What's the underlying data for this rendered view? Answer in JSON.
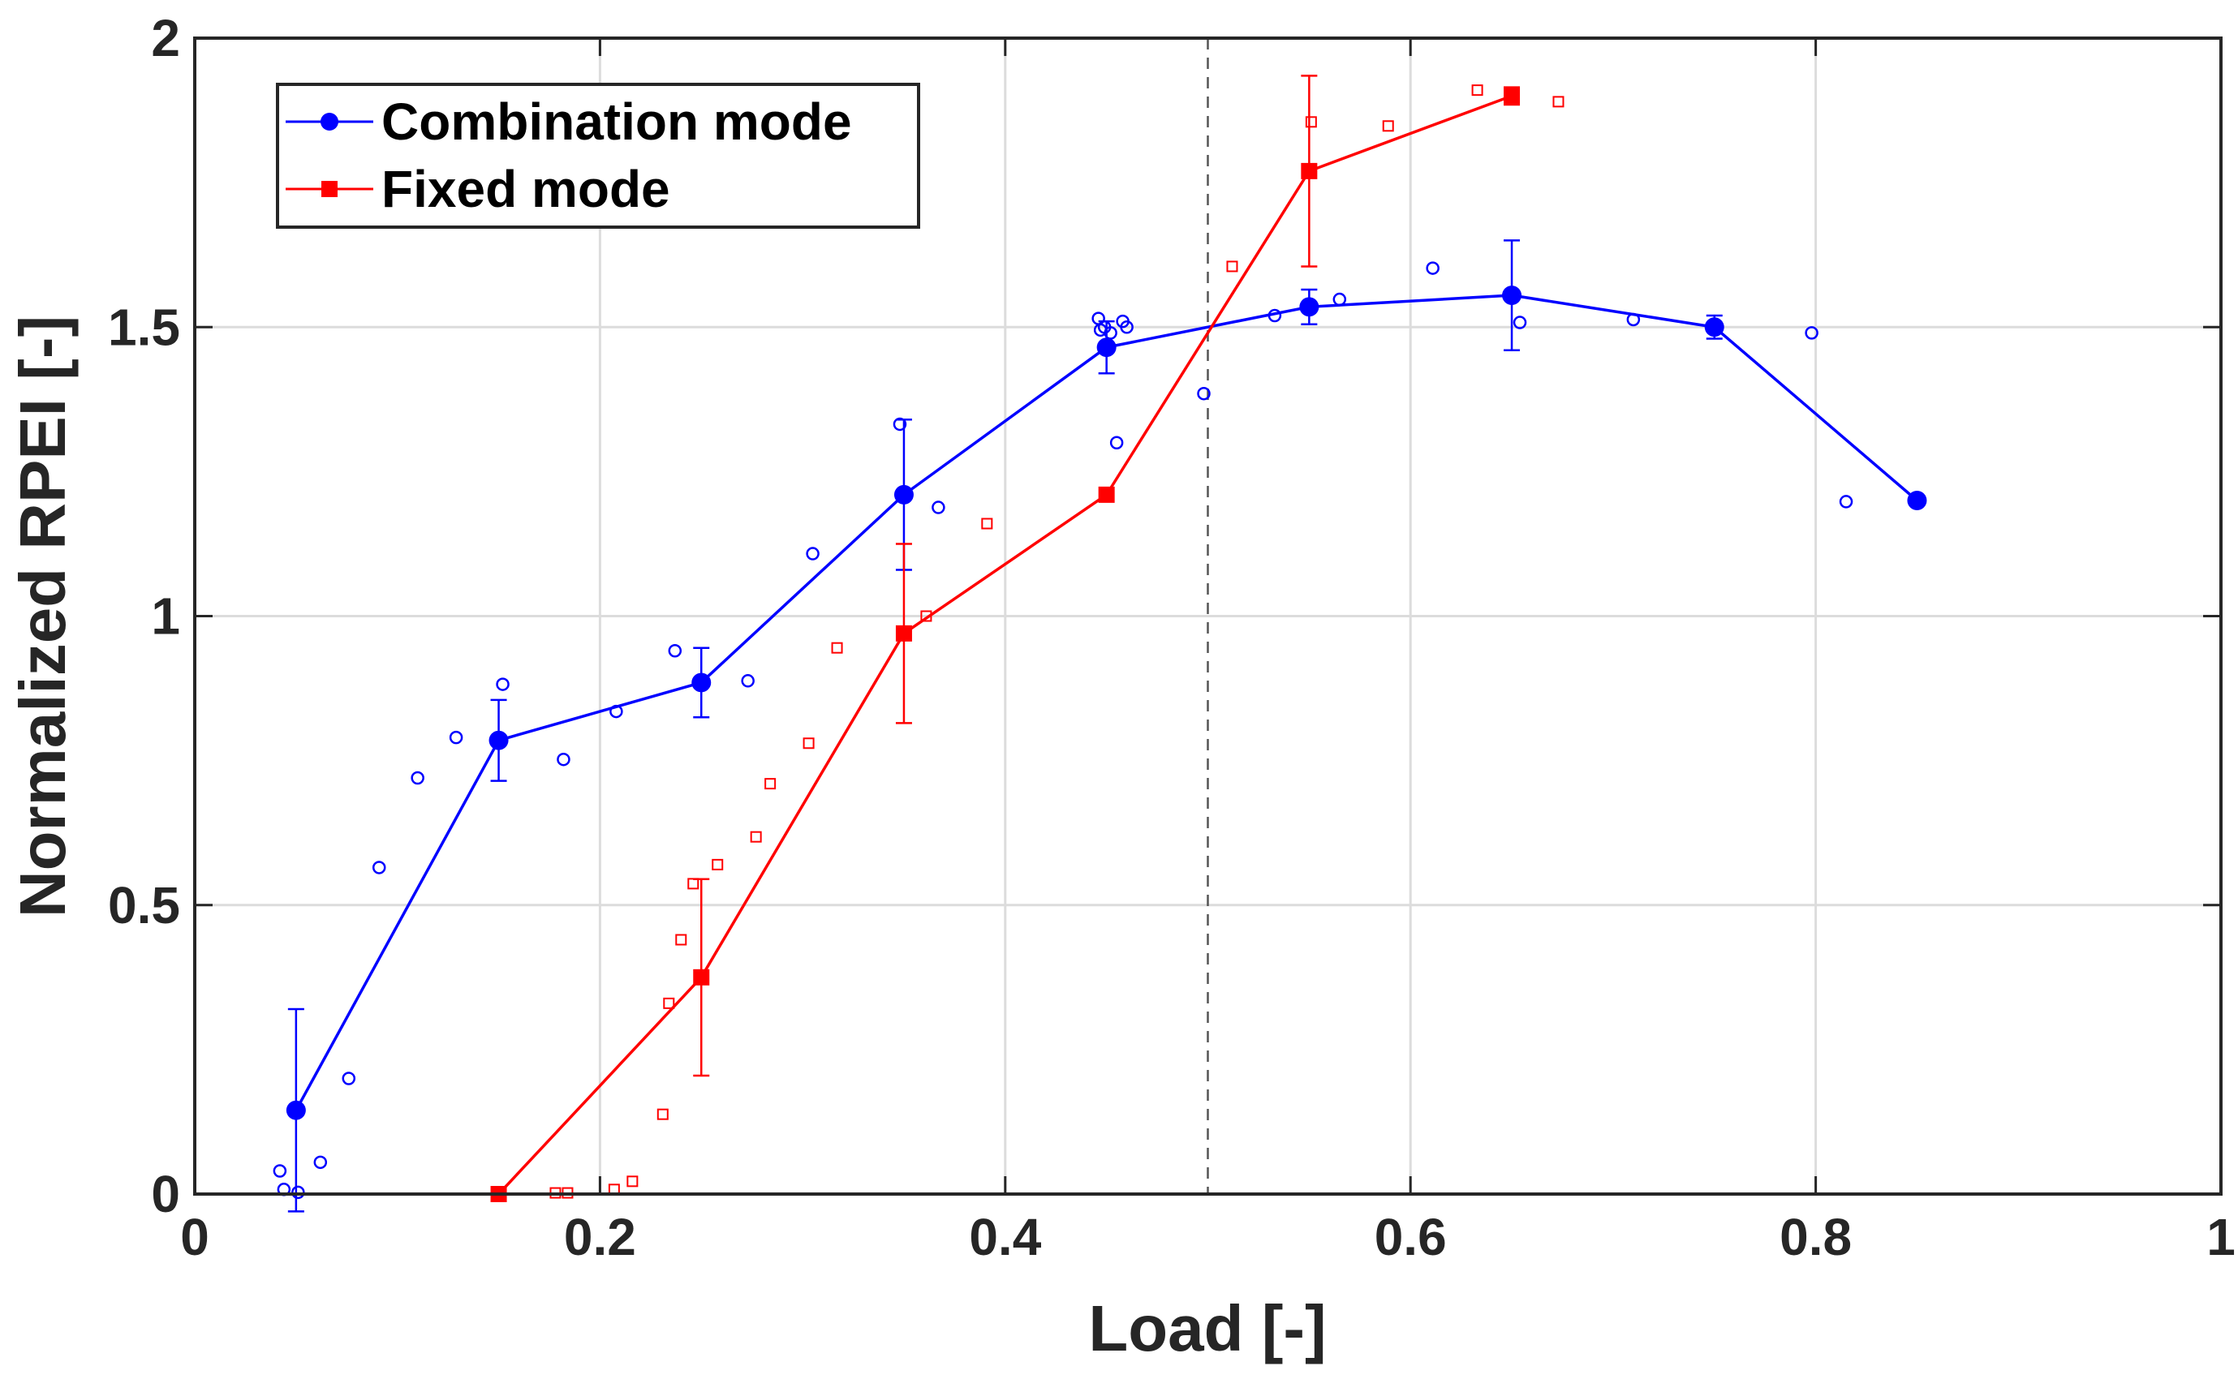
{
  "chart_data": {
    "type": "line",
    "title": "",
    "xlabel": "Load [-]",
    "ylabel": "Normalized RPEI [-]",
    "xlim": [
      0,
      1
    ],
    "ylim": [
      0,
      2
    ],
    "xticks": [
      "0",
      "0.2",
      "0.4",
      "0.6",
      "0.8",
      "1"
    ],
    "yticks": [
      "0",
      "0.5",
      "1",
      "1.5",
      "2"
    ],
    "grid": true,
    "legend_position": "top-left",
    "reference_line": {
      "x": 0.5,
      "style": "dashed",
      "color": "#555555"
    },
    "series": [
      {
        "name": "Combination mode",
        "color": "#0000ff",
        "marker": "circle",
        "x": [
          0.05,
          0.15,
          0.25,
          0.35,
          0.45,
          0.55,
          0.65,
          0.75,
          0.85
        ],
        "y": [
          0.145,
          0.785,
          0.885,
          1.21,
          1.465,
          1.535,
          1.555,
          1.5,
          1.2
        ],
        "error": [
          0.175,
          0.07,
          0.06,
          0.13,
          0.045,
          0.03,
          0.095,
          0.02,
          0
        ],
        "scatter": [
          [
            0.042,
            0.04
          ],
          [
            0.044,
            0.008
          ],
          [
            0.051,
            0.003
          ],
          [
            0.062,
            0.055
          ],
          [
            0.076,
            0.2
          ],
          [
            0.091,
            0.565
          ],
          [
            0.11,
            0.72
          ],
          [
            0.129,
            0.79
          ],
          [
            0.152,
            0.882
          ],
          [
            0.182,
            0.752
          ],
          [
            0.208,
            0.835
          ],
          [
            0.237,
            0.94
          ],
          [
            0.273,
            0.888
          ],
          [
            0.305,
            1.108
          ],
          [
            0.348,
            1.332
          ],
          [
            0.367,
            1.188
          ],
          [
            0.446,
            1.515
          ],
          [
            0.447,
            1.495
          ],
          [
            0.449,
            1.5
          ],
          [
            0.452,
            1.49
          ],
          [
            0.455,
            1.3
          ],
          [
            0.458,
            1.51
          ],
          [
            0.46,
            1.5
          ],
          [
            0.498,
            1.385
          ],
          [
            0.533,
            1.52
          ],
          [
            0.565,
            1.548
          ],
          [
            0.611,
            1.602
          ],
          [
            0.654,
            1.508
          ],
          [
            0.71,
            1.513
          ],
          [
            0.798,
            1.49
          ],
          [
            0.815,
            1.198
          ]
        ]
      },
      {
        "name": "Fixed mode",
        "color": "#ff0000",
        "marker": "square",
        "x": [
          0.15,
          0.25,
          0.35,
          0.45,
          0.55,
          0.65
        ],
        "y": [
          0.0,
          0.375,
          0.97,
          1.21,
          1.77,
          1.9
        ],
        "error": [
          0,
          0.17,
          0.155,
          0,
          0.165,
          0.015
        ],
        "scatter": [
          [
            0.178,
            0.002
          ],
          [
            0.184,
            0.002
          ],
          [
            0.207,
            0.008
          ],
          [
            0.216,
            0.022
          ],
          [
            0.231,
            0.138
          ],
          [
            0.234,
            0.33
          ],
          [
            0.24,
            0.44
          ],
          [
            0.246,
            0.537
          ],
          [
            0.258,
            0.57
          ],
          [
            0.277,
            0.618
          ],
          [
            0.284,
            0.71
          ],
          [
            0.303,
            0.78
          ],
          [
            0.317,
            0.945
          ],
          [
            0.361,
            1.0
          ],
          [
            0.391,
            1.16
          ],
          [
            0.512,
            1.605
          ],
          [
            0.551,
            1.855
          ],
          [
            0.589,
            1.848
          ],
          [
            0.633,
            1.91
          ],
          [
            0.673,
            1.89
          ]
        ]
      }
    ]
  }
}
